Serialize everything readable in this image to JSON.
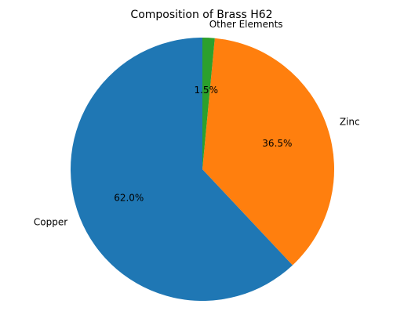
{
  "chart_data": {
    "type": "pie",
    "title": "Composition of Brass H62",
    "start_angle_deg": 90,
    "direction": "counterclockwise",
    "legend": "none",
    "slices": [
      {
        "label": "Copper",
        "value": 62.0,
        "pct_label": "62.0%",
        "color": "#1f77b4"
      },
      {
        "label": "Zinc",
        "value": 36.5,
        "pct_label": "36.5%",
        "color": "#ff7f0e"
      },
      {
        "label": "Other Elements",
        "value": 1.5,
        "pct_label": "1.5%",
        "color": "#2ca02c"
      }
    ]
  }
}
